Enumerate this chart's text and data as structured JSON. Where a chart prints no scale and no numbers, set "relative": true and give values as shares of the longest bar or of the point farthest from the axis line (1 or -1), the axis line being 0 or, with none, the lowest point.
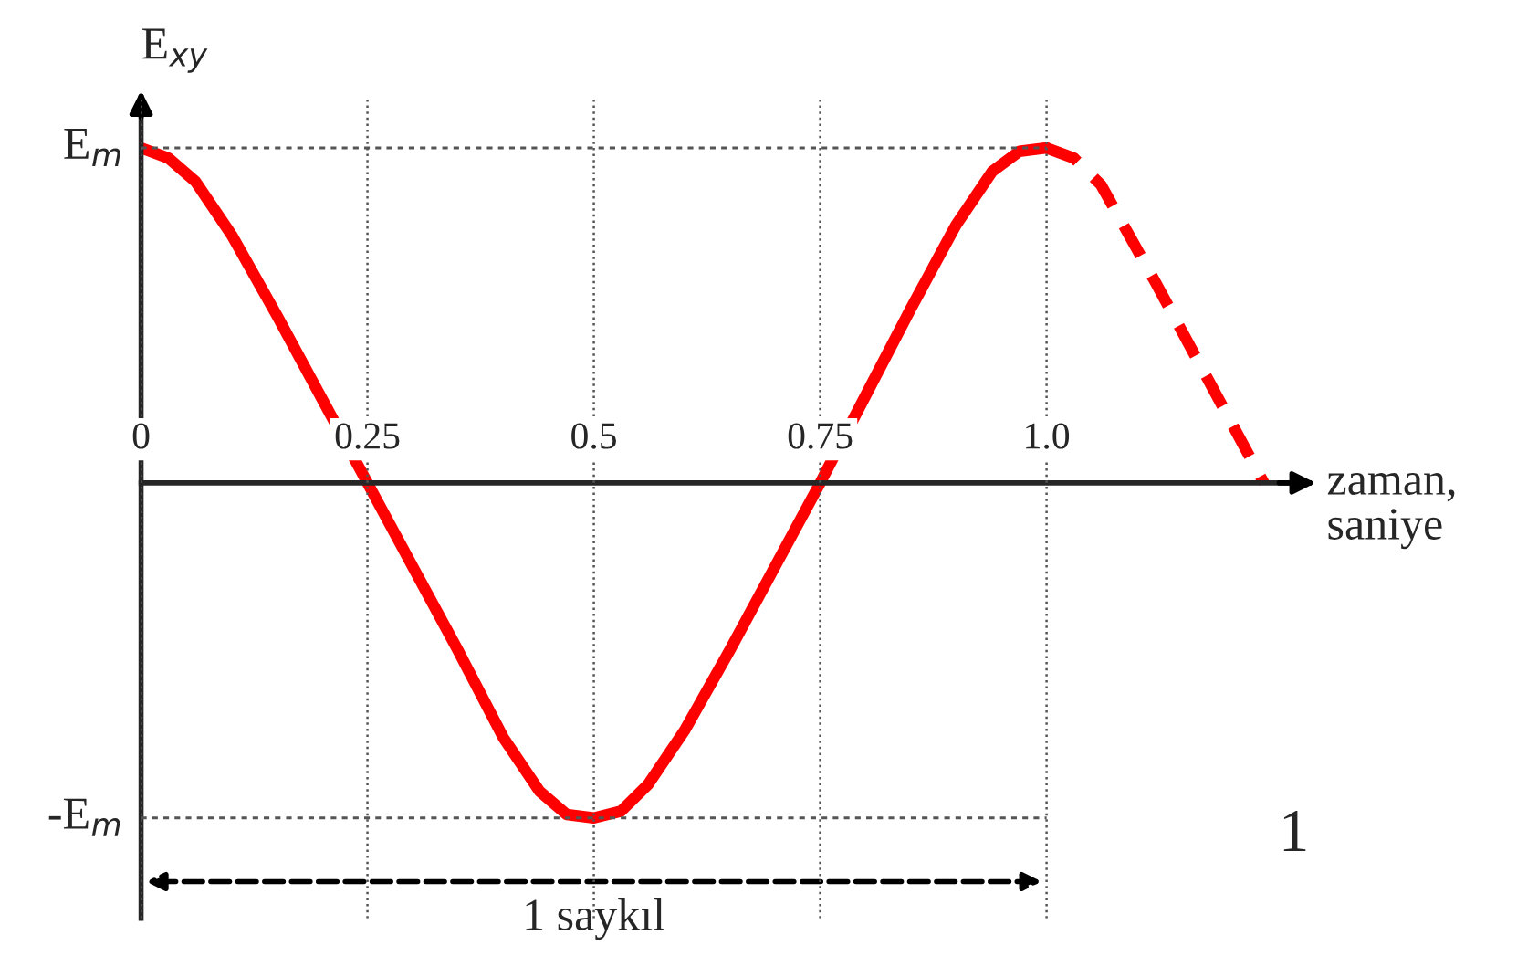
{
  "chart_data": {
    "type": "line",
    "relative": true,
    "ylabel": "E$_{xy}$",
    "xlabel": "zaman,\nsaniye",
    "xlim": [
      0,
      1.29
    ],
    "xticks": [
      0,
      0.25,
      0.5,
      0.75,
      {
        "value": 1,
        "label": "1.0"
      }
    ],
    "grid": "x",
    "ref_lines": [
      {
        "axis": "y",
        "value": 1,
        "label": "E$_{m}$",
        "color": "#555555",
        "line_style": "dotted"
      },
      {
        "axis": "y",
        "value": -1,
        "label": "-E$_{m}$",
        "color": "#555555",
        "line_style": "dotted"
      }
    ],
    "annotations": [
      "1 saykıl",
      "1"
    ],
    "series": [
      {
        "color": "#ff0000",
        "line_style": "solid",
        "x": [
          0,
          0.03,
          0.06,
          0.1,
          0.15,
          0.2,
          0.25,
          0.3,
          0.35,
          0.4,
          0.44,
          0.47,
          0.5,
          0.53,
          0.56,
          0.6,
          0.65,
          0.7,
          0.75,
          0.8,
          0.85,
          0.9,
          0.94,
          0.97,
          1
        ],
        "values": [
          1,
          0.97,
          0.9,
          0.74,
          0.5,
          0.25,
          0,
          -0.25,
          -0.5,
          -0.76,
          -0.92,
          -0.99,
          -1,
          -0.98,
          -0.9,
          -0.74,
          -0.5,
          -0.25,
          0,
          0.26,
          0.52,
          0.77,
          0.93,
          0.99,
          1
        ]
      },
      {
        "color": "#ff0000",
        "line_style": "dashed",
        "x": [
          1,
          1.03,
          1.06,
          1.12,
          1.18,
          1.24
        ],
        "values": [
          1,
          0.97,
          0.89,
          0.6,
          0.3,
          0
        ]
      }
    ]
  }
}
